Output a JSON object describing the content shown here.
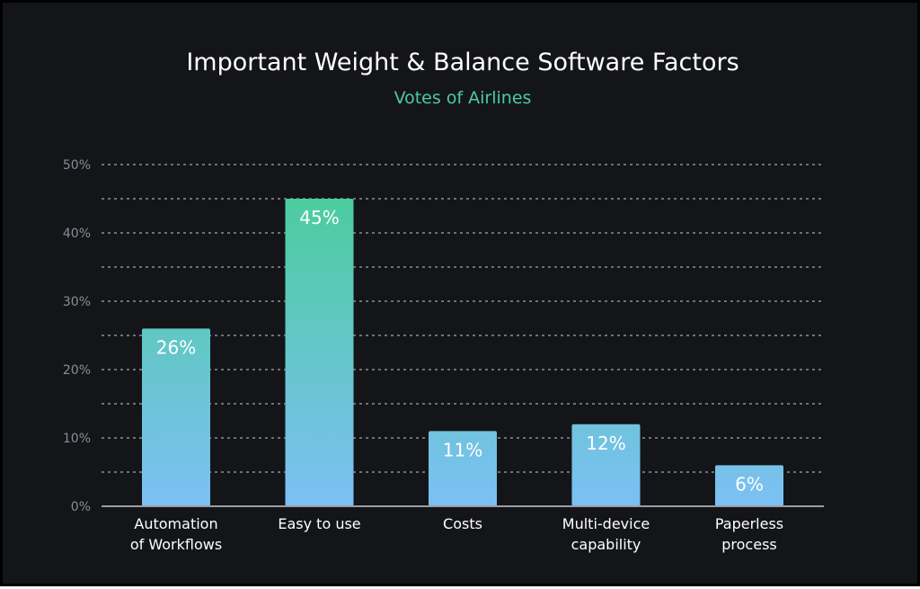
{
  "chart_data": {
    "type": "bar",
    "title": "Important Weight & Balance Software Factors",
    "subtitle": "Votes of Airlines",
    "categories": [
      [
        "Automation",
        "of Workflows"
      ],
      [
        "Easy to use"
      ],
      [
        "Costs"
      ],
      [
        "Multi-device",
        "capability"
      ],
      [
        "Paperless",
        "process"
      ]
    ],
    "values": [
      26,
      45,
      11,
      12,
      6
    ],
    "data_labels": [
      "26%",
      "45%",
      "11%",
      "12%",
      "6%"
    ],
    "ylim": [
      0,
      50
    ],
    "y_ticks": [
      0,
      10,
      20,
      30,
      40,
      50
    ],
    "y_tick_labels": [
      "0%",
      "10%",
      "20%",
      "30%",
      "40%",
      "50%"
    ],
    "xlabel": "",
    "ylabel": "",
    "grid": true,
    "legend": "none",
    "colors": {
      "background": "#141519",
      "bar_top": "#4ccc9e",
      "bar_bottom": "#7cc0f4",
      "subtitle": "#4ccc9e"
    }
  }
}
